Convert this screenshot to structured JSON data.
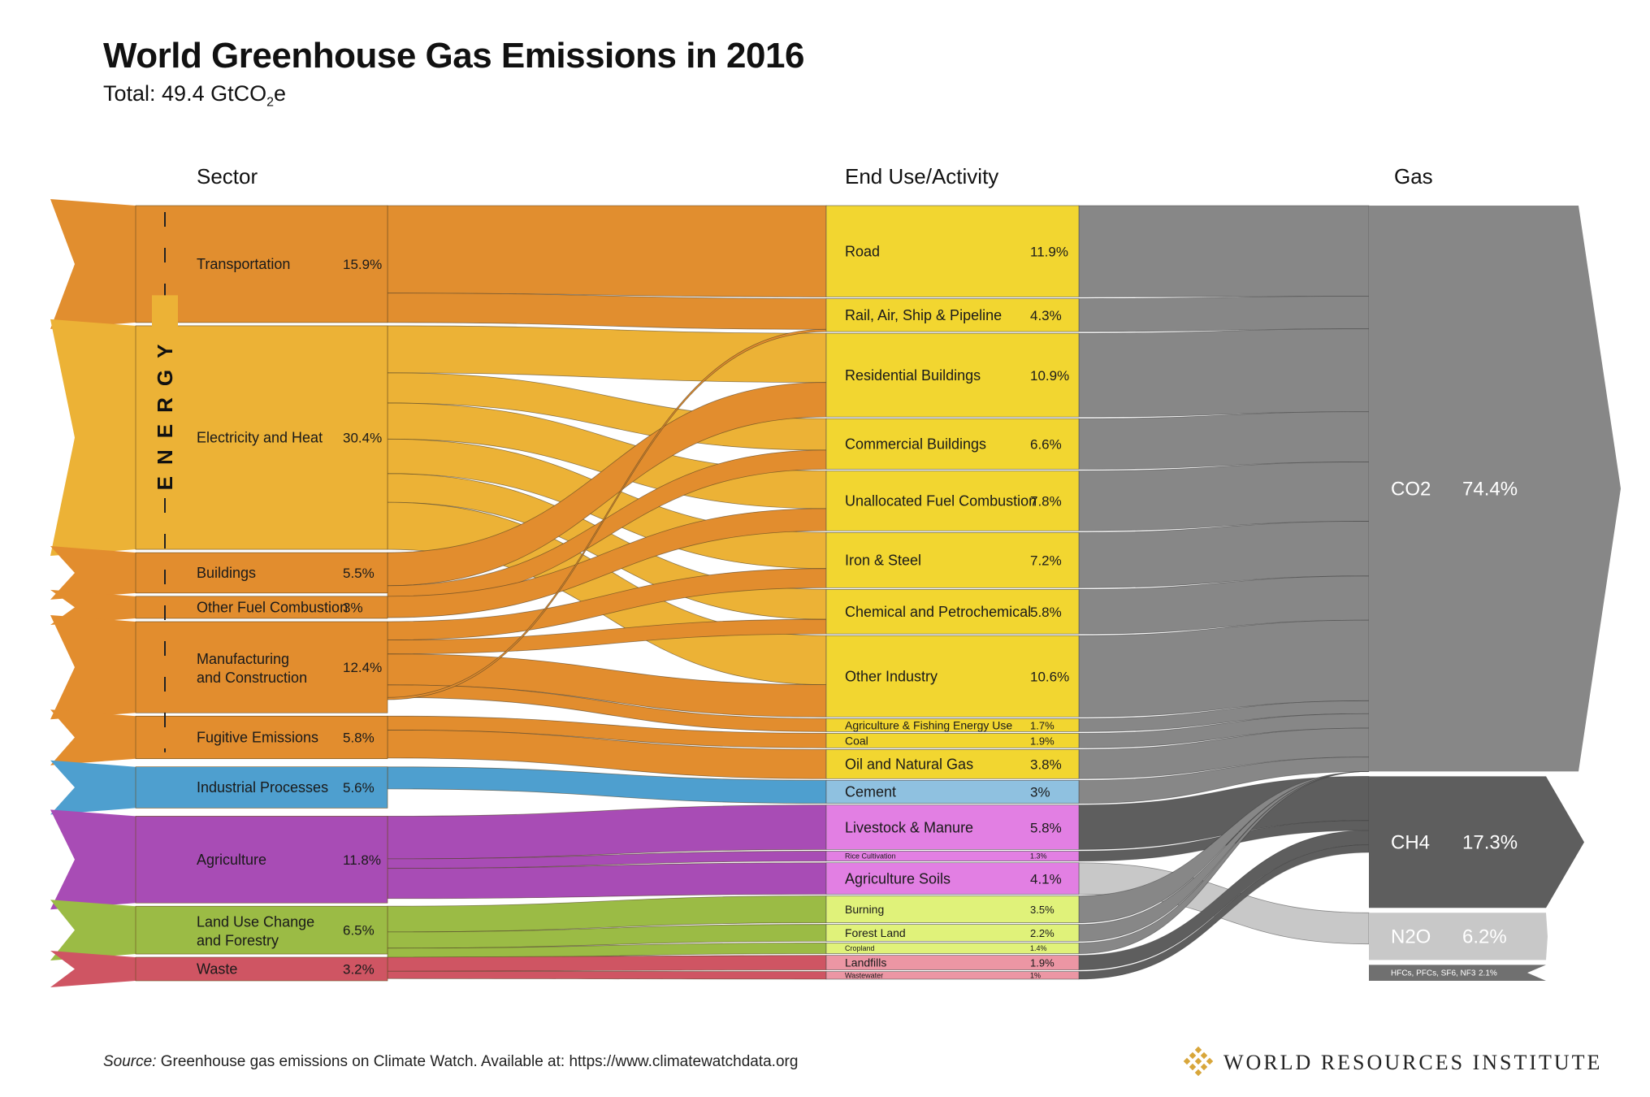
{
  "header": {
    "title": "World Greenhouse Gas Emissions in 2016",
    "subtitle_prefix": "Total: 49.4 GtCO",
    "subtitle_sub": "2",
    "subtitle_suffix": "e"
  },
  "columns": {
    "sector": "Sector",
    "enduse": "End Use/Activity",
    "gas": "Gas"
  },
  "energy_label": "ENERGY",
  "colors": {
    "transport": "#e18e2f",
    "electricity": "#ecb236",
    "energy_other": "#e28d2e",
    "industrial": "#4e9fcf",
    "agriculture": "#a84cb5",
    "landuse": "#9bbb45",
    "waste": "#cf5563",
    "enduse_energy": "#f2d630",
    "enduse_industrial": "#8fc1e0",
    "enduse_agriculture": "#e27fe3",
    "enduse_landuse": "#e0f27a",
    "enduse_waste": "#ec96a4",
    "co2": "#878787",
    "ch4": "#5e5e5e",
    "n2o": "#c8c8c8",
    "fgas": "#707070",
    "flow_grey": "#8a8a8a",
    "wri_gold": "#d8a63a"
  },
  "sectors": [
    {
      "name": "Transportation",
      "value": "15.9%",
      "pct": 15.9,
      "color": "transport"
    },
    {
      "name": "Electricity and Heat",
      "value": "30.4%",
      "pct": 30.4,
      "color": "electricity"
    },
    {
      "name": "Buildings",
      "value": "5.5%",
      "pct": 5.5,
      "color": "energy_other"
    },
    {
      "name": "Other Fuel Combustion",
      "value": "3%",
      "pct": 3.0,
      "color": "energy_other"
    },
    {
      "name": "Manufacturing",
      "name2": "and Construction",
      "value": "12.4%",
      "pct": 12.4,
      "color": "energy_other"
    },
    {
      "name": "Fugitive Emissions",
      "value": "5.8%",
      "pct": 5.8,
      "color": "energy_other"
    },
    {
      "name": "Industrial Processes",
      "value": "5.6%",
      "pct": 5.6,
      "color": "industrial"
    },
    {
      "name": "Agriculture",
      "value": "11.8%",
      "pct": 11.8,
      "color": "agriculture"
    },
    {
      "name": "Land Use Change",
      "name2": "and Forestry",
      "value": "6.5%",
      "pct": 6.5,
      "color": "landuse"
    },
    {
      "name": "Waste",
      "value": "3.2%",
      "pct": 3.2,
      "color": "waste"
    }
  ],
  "enduses": [
    {
      "name": "Road",
      "value": "11.9%",
      "pct": 11.9,
      "color": "enduse_energy"
    },
    {
      "name": "Rail, Air, Ship & Pipeline",
      "value": "4.3%",
      "pct": 4.3,
      "color": "enduse_energy"
    },
    {
      "name": "Residential Buildings",
      "value": "10.9%",
      "pct": 10.9,
      "color": "enduse_energy"
    },
    {
      "name": "Commercial Buildings",
      "value": "6.6%",
      "pct": 6.6,
      "color": "enduse_energy"
    },
    {
      "name": "Unallocated Fuel Combustion",
      "value": "7.8%",
      "pct": 7.8,
      "color": "enduse_energy"
    },
    {
      "name": "Iron & Steel",
      "value": "7.2%",
      "pct": 7.2,
      "color": "enduse_energy"
    },
    {
      "name": "Chemical and Petrochemical",
      "value": "5.8%",
      "pct": 5.8,
      "color": "enduse_energy"
    },
    {
      "name": "Other Industry",
      "value": "10.6%",
      "pct": 10.6,
      "color": "enduse_energy"
    },
    {
      "name": "Agriculture & Fishing Energy Use",
      "value": "1.7%",
      "pct": 1.7,
      "color": "enduse_energy",
      "small": true
    },
    {
      "name": "Coal",
      "value": "1.9%",
      "pct": 1.9,
      "color": "enduse_energy",
      "small": true
    },
    {
      "name": "Oil and Natural Gas",
      "value": "3.8%",
      "pct": 3.8,
      "color": "enduse_energy"
    },
    {
      "name": "Cement",
      "value": "3%",
      "pct": 3.0,
      "color": "enduse_industrial"
    },
    {
      "name": "Livestock & Manure",
      "value": "5.8%",
      "pct": 5.8,
      "color": "enduse_agriculture"
    },
    {
      "name": "Rice Cultivation",
      "value": "1.3%",
      "pct": 1.3,
      "color": "enduse_agriculture",
      "small": true
    },
    {
      "name": "Agriculture Soils",
      "value": "4.1%",
      "pct": 4.1,
      "color": "enduse_agriculture"
    },
    {
      "name": "Burning",
      "value": "3.5%",
      "pct": 3.5,
      "color": "enduse_landuse",
      "small": true
    },
    {
      "name": "Forest Land",
      "value": "2.2%",
      "pct": 2.2,
      "color": "enduse_landuse",
      "small": true
    },
    {
      "name": "Cropland",
      "value": "1.4%",
      "pct": 1.4,
      "color": "enduse_landuse",
      "small": true
    },
    {
      "name": "Landfills",
      "value": "1.9%",
      "pct": 1.9,
      "color": "enduse_waste",
      "small": true
    },
    {
      "name": "Wastewater",
      "value": "1%",
      "pct": 1.0,
      "color": "enduse_waste",
      "small": true
    }
  ],
  "gases": [
    {
      "name": "CO2",
      "value": "74.4%",
      "pct": 74.4,
      "color": "co2"
    },
    {
      "name": "CH4",
      "value": "17.3%",
      "pct": 17.3,
      "color": "ch4"
    },
    {
      "name": "N2O",
      "value": "6.2%",
      "pct": 6.2,
      "color": "n2o"
    },
    {
      "name": "HFCs, PFCs, SF6, NF3",
      "value": "2.1%",
      "pct": 2.1,
      "color": "fgas",
      "small": true
    }
  ],
  "footer": {
    "source_label": "Source:",
    "source_text": " Greenhouse gas emissions on Climate Watch. Available at: https://www.climatewatchdata.org",
    "org": "WORLD RESOURCES INSTITUTE"
  }
}
